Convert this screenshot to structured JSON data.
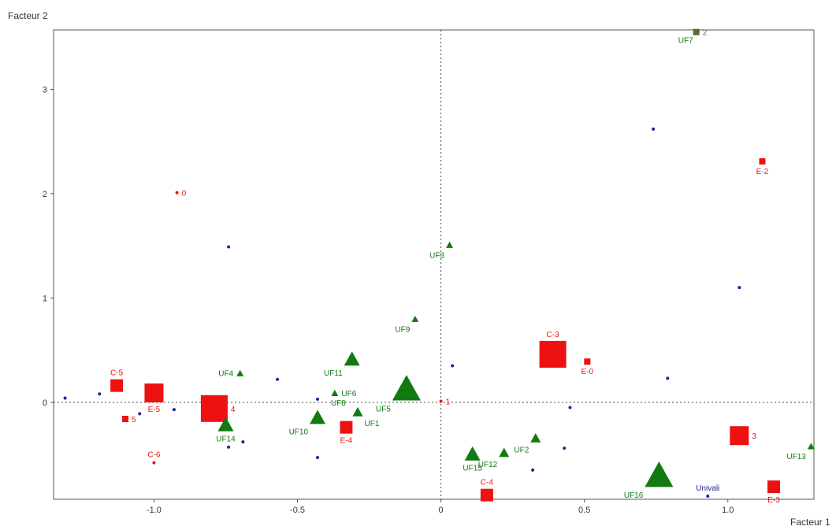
{
  "chart_data": {
    "type": "scatter",
    "title": "",
    "xlabel": "Facteur 1",
    "ylabel": "Facteur 2",
    "xlim": [
      -1.35,
      1.3
    ],
    "ylim": [
      -0.93,
      3.57
    ],
    "x_ticks": [
      "-1.0",
      "-0.5",
      "0",
      "0.5",
      "1.0"
    ],
    "y_ticks": [
      "0",
      "1",
      "2",
      "3"
    ],
    "x_tick_values": [
      -1.0,
      -0.5,
      0,
      0.5,
      1.0
    ],
    "y_tick_values": [
      0,
      1,
      2,
      3
    ],
    "grid": false,
    "reference_lines": {
      "x": 0,
      "y": 0
    },
    "colors": {
      "red": "#ee1111",
      "green": "#117a11",
      "blue": "#22229a",
      "olive": "#556b2f"
    },
    "points": [
      {
        "x": -1.0,
        "y": 0.09,
        "shape": "square",
        "size": 3,
        "color": "red",
        "label": "E-5",
        "label_pos": "below"
      },
      {
        "x": -1.13,
        "y": 0.16,
        "shape": "square",
        "size": 2,
        "color": "red",
        "label": "C-5",
        "label_pos": "above"
      },
      {
        "x": -1.1,
        "y": -0.16,
        "shape": "square",
        "size": 1,
        "color": "red",
        "label": "5",
        "label_pos": "right"
      },
      {
        "x": -1.0,
        "y": -0.58,
        "shape": "dot",
        "size": 1,
        "color": "red",
        "label": "C-6",
        "label_pos": "above"
      },
      {
        "x": -0.92,
        "y": 2.01,
        "shape": "dot",
        "size": 1,
        "color": "red",
        "label": "0",
        "label_pos": "right"
      },
      {
        "x": -0.79,
        "y": -0.06,
        "shape": "square",
        "size": 4,
        "color": "red",
        "label": "4",
        "label_pos": "right"
      },
      {
        "x": -0.33,
        "y": -0.24,
        "shape": "square",
        "size": 2,
        "color": "red",
        "label": "E-4",
        "label_pos": "below"
      },
      {
        "x": 0.0,
        "y": 0.01,
        "shape": "dot",
        "size": 1,
        "color": "red",
        "label": "1",
        "label_pos": "right"
      },
      {
        "x": 0.39,
        "y": 0.46,
        "shape": "square",
        "size": 4,
        "color": "red",
        "label": "C-3",
        "label_pos": "above"
      },
      {
        "x": 0.51,
        "y": 0.39,
        "shape": "square",
        "size": 1,
        "color": "red",
        "label": "E-0",
        "label_pos": "below"
      },
      {
        "x": 0.16,
        "y": -0.89,
        "shape": "square",
        "size": 2,
        "color": "red",
        "label": "C-4",
        "label_pos": "above"
      },
      {
        "x": 1.04,
        "y": -0.32,
        "shape": "square",
        "size": 3,
        "color": "red",
        "label": "3",
        "label_pos": "right"
      },
      {
        "x": 1.16,
        "y": -0.81,
        "shape": "square",
        "size": 2,
        "color": "red",
        "label": "E-3",
        "label_pos": "below"
      },
      {
        "x": 1.12,
        "y": 2.31,
        "shape": "square",
        "size": 1,
        "color": "red",
        "label": "E-2",
        "label_pos": "below"
      },
      {
        "x": 0.89,
        "y": 3.55,
        "shape": "square",
        "size": 1,
        "color": "olive",
        "label": "2",
        "label_pos": "right"
      },
      {
        "x": -0.75,
        "y": -0.21,
        "shape": "triangle",
        "size": 3,
        "color": "green",
        "label": "UF14",
        "label_pos": "below"
      },
      {
        "x": -0.7,
        "y": 0.28,
        "shape": "triangle",
        "size": 1,
        "color": "green",
        "label": "UF4",
        "label_pos": "left"
      },
      {
        "x": -0.43,
        "y": -0.14,
        "shape": "triangle",
        "size": 3,
        "color": "green",
        "label": "UF10",
        "label_pos": "below-left"
      },
      {
        "x": -0.37,
        "y": 0.09,
        "shape": "triangle",
        "size": 1,
        "color": "green",
        "label": "UF6",
        "label_pos": "right"
      },
      {
        "x": -0.4,
        "y": 0.0,
        "shape": "none",
        "size": 1,
        "color": "green",
        "label": "UF8",
        "label_pos": "right"
      },
      {
        "x": -0.31,
        "y": 0.42,
        "shape": "triangle",
        "size": 3,
        "color": "green",
        "label": "UF11",
        "label_pos": "below-left"
      },
      {
        "x": -0.29,
        "y": -0.09,
        "shape": "triangle",
        "size": 2,
        "color": "green",
        "label": "UF1",
        "label_pos": "below-right"
      },
      {
        "x": -0.12,
        "y": 0.14,
        "shape": "triangle",
        "size": 5,
        "color": "green",
        "label": "UF5",
        "label_pos": "below-left"
      },
      {
        "x": -0.09,
        "y": 0.8,
        "shape": "triangle",
        "size": 1,
        "color": "green",
        "label": "UF9",
        "label_pos": "below-left"
      },
      {
        "x": 0.03,
        "y": 1.51,
        "shape": "triangle",
        "size": 1,
        "color": "green",
        "label": "UF3",
        "label_pos": "below-left"
      },
      {
        "x": 0.11,
        "y": -0.49,
        "shape": "triangle",
        "size": 3,
        "color": "green",
        "label": "UF15",
        "label_pos": "below"
      },
      {
        "x": 0.22,
        "y": -0.48,
        "shape": "triangle",
        "size": 2,
        "color": "green",
        "label": "UF12",
        "label_pos": "below-left"
      },
      {
        "x": 0.33,
        "y": -0.34,
        "shape": "triangle",
        "size": 2,
        "color": "green",
        "label": "UF2",
        "label_pos": "below-left"
      },
      {
        "x": 0.76,
        "y": -0.69,
        "shape": "triangle",
        "size": 5,
        "color": "green",
        "label": "UF16",
        "label_pos": "below-left"
      },
      {
        "x": 0.89,
        "y": 3.55,
        "shape": "none",
        "size": 1,
        "color": "green",
        "label": "UF7",
        "label_pos": "below-left"
      },
      {
        "x": 1.29,
        "y": -0.42,
        "shape": "triangle",
        "size": 1,
        "color": "green",
        "label": "UF13",
        "label_pos": "below-left"
      },
      {
        "x": 0.93,
        "y": -0.9,
        "shape": "dot",
        "size": 1,
        "color": "blue",
        "label": "Univali",
        "label_pos": "above"
      },
      {
        "x": -1.31,
        "y": 0.04,
        "shape": "dot",
        "size": 1,
        "color": "blue",
        "label": ""
      },
      {
        "x": -1.19,
        "y": 0.08,
        "shape": "dot",
        "size": 1,
        "color": "blue",
        "label": ""
      },
      {
        "x": -1.05,
        "y": -0.11,
        "shape": "dot",
        "size": 1,
        "color": "blue",
        "label": ""
      },
      {
        "x": -0.93,
        "y": -0.07,
        "shape": "dot",
        "size": 1,
        "color": "blue",
        "label": ""
      },
      {
        "x": -0.74,
        "y": 1.49,
        "shape": "dot",
        "size": 1,
        "color": "blue",
        "label": ""
      },
      {
        "x": -0.74,
        "y": -0.43,
        "shape": "dot",
        "size": 1,
        "color": "blue",
        "label": ""
      },
      {
        "x": -0.69,
        "y": -0.38,
        "shape": "dot",
        "size": 1,
        "color": "blue",
        "label": ""
      },
      {
        "x": -0.57,
        "y": 0.22,
        "shape": "dot",
        "size": 1,
        "color": "blue",
        "label": ""
      },
      {
        "x": -0.43,
        "y": 0.03,
        "shape": "dot",
        "size": 1,
        "color": "blue",
        "label": ""
      },
      {
        "x": -0.43,
        "y": -0.53,
        "shape": "dot",
        "size": 1,
        "color": "blue",
        "label": ""
      },
      {
        "x": 0.04,
        "y": 0.35,
        "shape": "dot",
        "size": 1,
        "color": "blue",
        "label": ""
      },
      {
        "x": 0.32,
        "y": -0.65,
        "shape": "dot",
        "size": 1,
        "color": "blue",
        "label": ""
      },
      {
        "x": 0.43,
        "y": -0.44,
        "shape": "dot",
        "size": 1,
        "color": "blue",
        "label": ""
      },
      {
        "x": 0.45,
        "y": -0.05,
        "shape": "dot",
        "size": 1,
        "color": "blue",
        "label": ""
      },
      {
        "x": 0.74,
        "y": 2.62,
        "shape": "dot",
        "size": 1,
        "color": "blue",
        "label": ""
      },
      {
        "x": 0.79,
        "y": 0.23,
        "shape": "dot",
        "size": 1,
        "color": "blue",
        "label": ""
      },
      {
        "x": 1.04,
        "y": 1.1,
        "shape": "dot",
        "size": 1,
        "color": "blue",
        "label": ""
      }
    ]
  }
}
